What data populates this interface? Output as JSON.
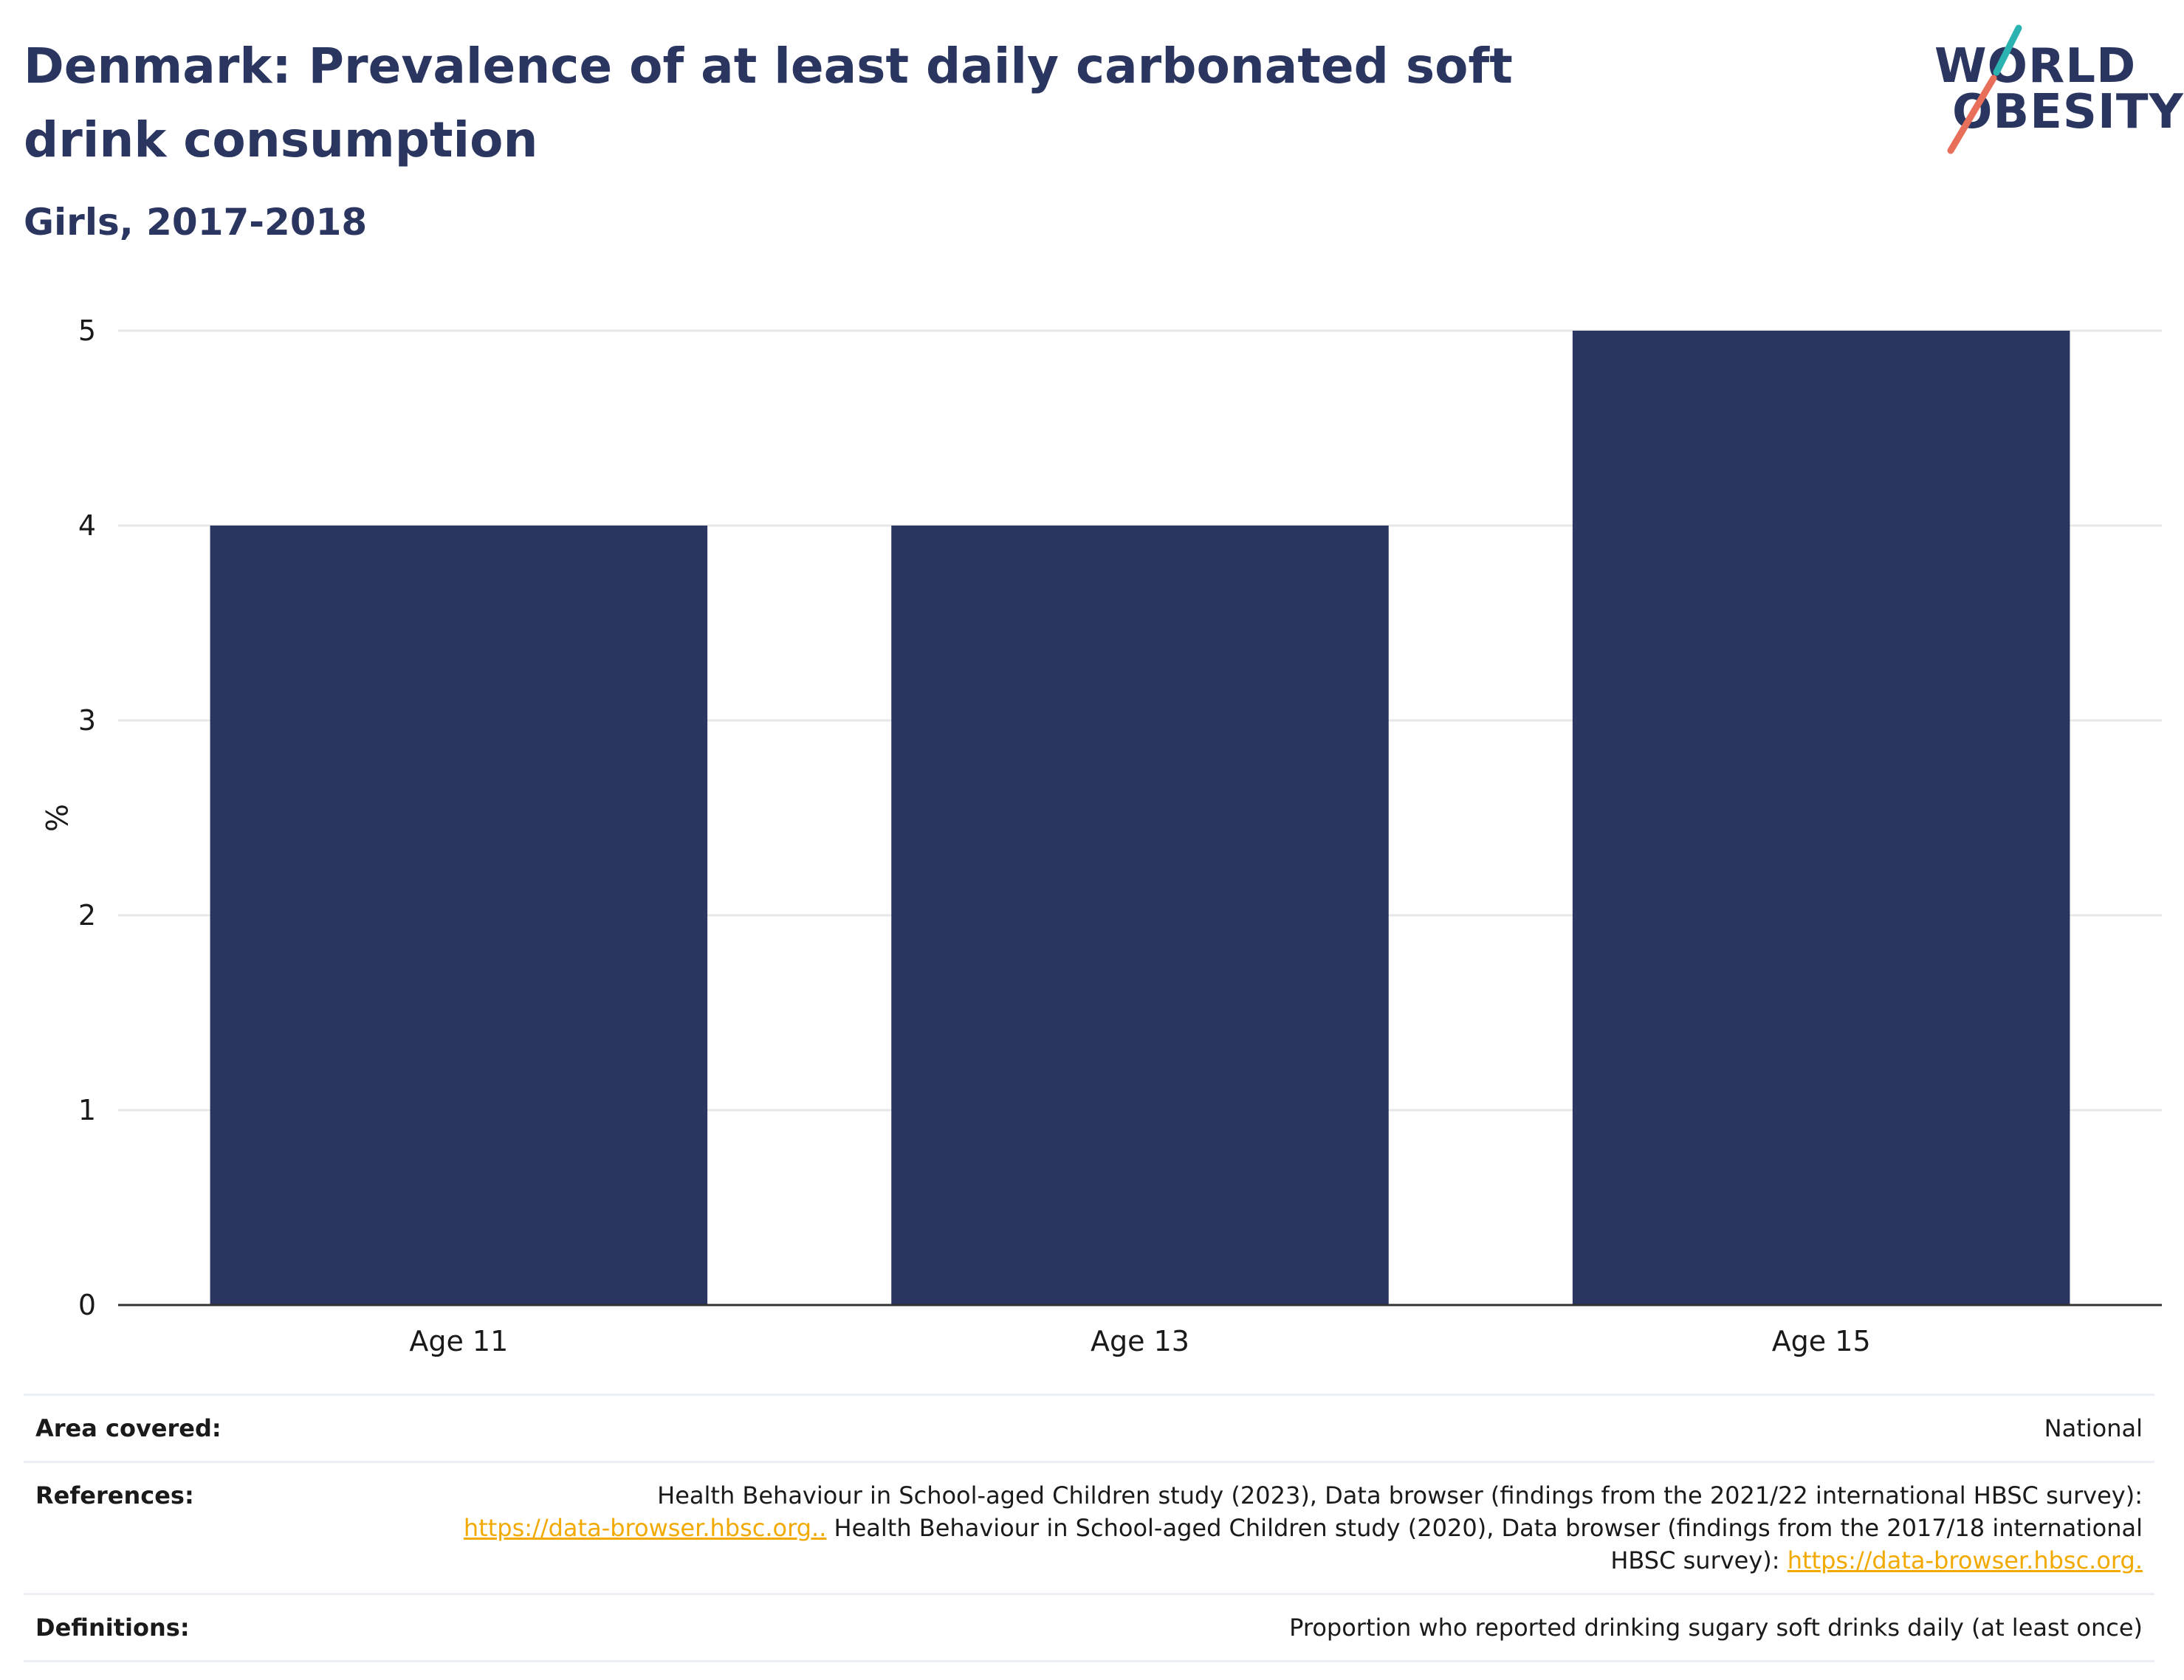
{
  "header": {
    "title": "Denmark: Prevalence of at least daily carbonated soft drink consumption",
    "subtitle": "Girls, 2017-2018"
  },
  "logo": {
    "line1": "WORLD",
    "line2": "OBESITY",
    "accent_colors": [
      "#2bb3b1",
      "#e8705a"
    ]
  },
  "chart_data": {
    "type": "bar",
    "categories": [
      "Age 11",
      "Age 13",
      "Age 15"
    ],
    "values": [
      4,
      4,
      5
    ],
    "ylabel": "%",
    "xlabel": "",
    "ylim": [
      0,
      5
    ],
    "yticks": [
      0,
      1,
      2,
      3,
      4,
      5
    ],
    "grid": true,
    "bar_color": "#2a365f"
  },
  "info": {
    "area_label": "Area covered:",
    "area_value": "National",
    "references_label": "References:",
    "references_text1": "Health Behaviour in School-aged Children study (2023), Data browser (findings from the 2021/22 international HBSC survey):",
    "references_link1": "https://data-browser.hbsc.org..",
    "references_text2": " Health Behaviour in School-aged Children study (2020), Data browser (findings from the 2017/18 international HBSC survey): ",
    "references_link2": "https://data-browser.hbsc.org.",
    "definitions_label": "Definitions:",
    "definitions_value": "Proportion who reported drinking sugary soft drinks daily (at least once)"
  }
}
